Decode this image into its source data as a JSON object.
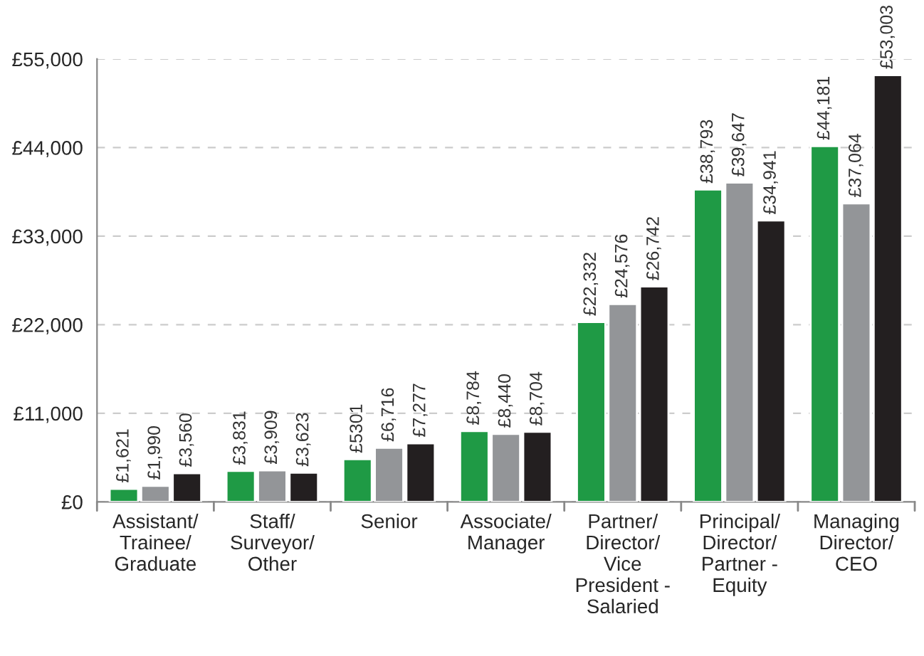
{
  "chart_data": {
    "type": "bar",
    "categories": [
      "Assistant/\nTrainee/\nGraduate",
      "Staff/\nSurveyor/\nOther",
      "Senior",
      "Associate/\nManager",
      "Partner/\nDirector/\nVice\nPresident -\nSalaried",
      "Principal/\nDirector/\nPartner -\nEquity",
      "Managing\nDirector/\nCEO"
    ],
    "series": [
      {
        "color": "#1f9a45",
        "values": [
          1621,
          3831,
          5301,
          8784,
          22332,
          38793,
          44181
        ],
        "value_labels": [
          "£1,621",
          "£3,831",
          "£5301",
          "£8,784",
          "£22,332",
          "£38,793",
          "£44,181"
        ]
      },
      {
        "color": "#939598",
        "values": [
          1990,
          3909,
          6716,
          8440,
          24576,
          39647,
          37064
        ],
        "value_labels": [
          "£1,990",
          "£3,909",
          "£6,716",
          "£8,440",
          "£24,576",
          "£39,647",
          "£37,064"
        ]
      },
      {
        "color": "#231f20",
        "values": [
          3560,
          3623,
          7277,
          8704,
          26742,
          34941,
          53003
        ],
        "value_labels": [
          "£3,560",
          "£3,623",
          "£7,277",
          "£8,704",
          "£26,742",
          "£34,941",
          "£53,003"
        ]
      }
    ],
    "ylim": [
      0,
      55000
    ],
    "yticks": [
      {
        "value": 0,
        "label": "£0"
      },
      {
        "value": 11000,
        "label": "£11,000"
      },
      {
        "value": 22000,
        "label": "£22,000"
      },
      {
        "value": 33000,
        "label": "£33,000"
      },
      {
        "value": 44000,
        "label": "£44,000"
      },
      {
        "value": 55000,
        "label": "£55,000"
      }
    ],
    "grid": "y",
    "line_style": "dashed",
    "legend": false
  }
}
